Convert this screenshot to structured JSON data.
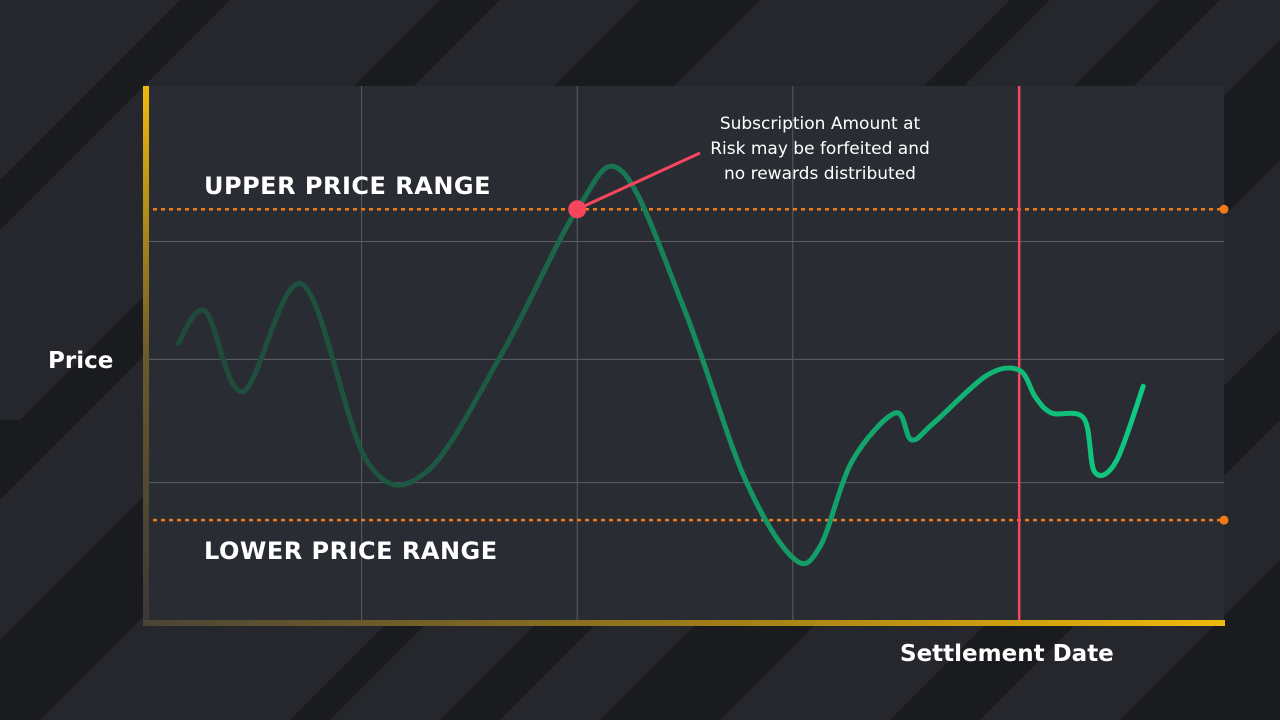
{
  "chart_data": {
    "type": "line",
    "title": "",
    "xlabel": "Settlement Date",
    "ylabel": "Price",
    "grid": true,
    "axis_tick_labels": false,
    "upper_range_label": "UPPER PRICE RANGE",
    "lower_range_label": "LOWER PRICE RANGE",
    "upper_range_value": 0.77,
    "lower_range_value": 0.19,
    "xlim": [
      0,
      1
    ],
    "ylim": [
      0,
      1
    ],
    "settlement_x": 0.81,
    "breach_point": {
      "x": 0.4,
      "y": 0.77
    },
    "annotation_lines": [
      "Subscription Amount at",
      "Risk may be forfeited and",
      "no rewards distributed"
    ],
    "series": [
      {
        "x": [
          0.03,
          0.055,
          0.09,
          0.145,
          0.205,
          0.26,
          0.33,
          0.4,
          0.442,
          0.5,
          0.555,
          0.6,
          0.625,
          0.655,
          0.695,
          0.71,
          0.73,
          0.78,
          0.81,
          0.825,
          0.84,
          0.87,
          0.88,
          0.9,
          0.925
        ],
        "y": [
          0.52,
          0.58,
          0.43,
          0.63,
          0.3,
          0.28,
          0.5,
          0.77,
          0.84,
          0.58,
          0.27,
          0.12,
          0.14,
          0.3,
          0.39,
          0.34,
          0.37,
          0.46,
          0.47,
          0.42,
          0.39,
          0.38,
          0.28,
          0.3,
          0.44
        ]
      }
    ],
    "colors": {
      "background": "#1a1b1f",
      "plot_area": "#2a2c33",
      "gridline": "#5c5e66",
      "axis": "#f0b90b",
      "line_start": "#1f4a3b",
      "line_end": "#0ecb81",
      "range_line": "#f07b16",
      "settlement_line": "#f6465d",
      "breach_marker": "#f6465d"
    }
  }
}
